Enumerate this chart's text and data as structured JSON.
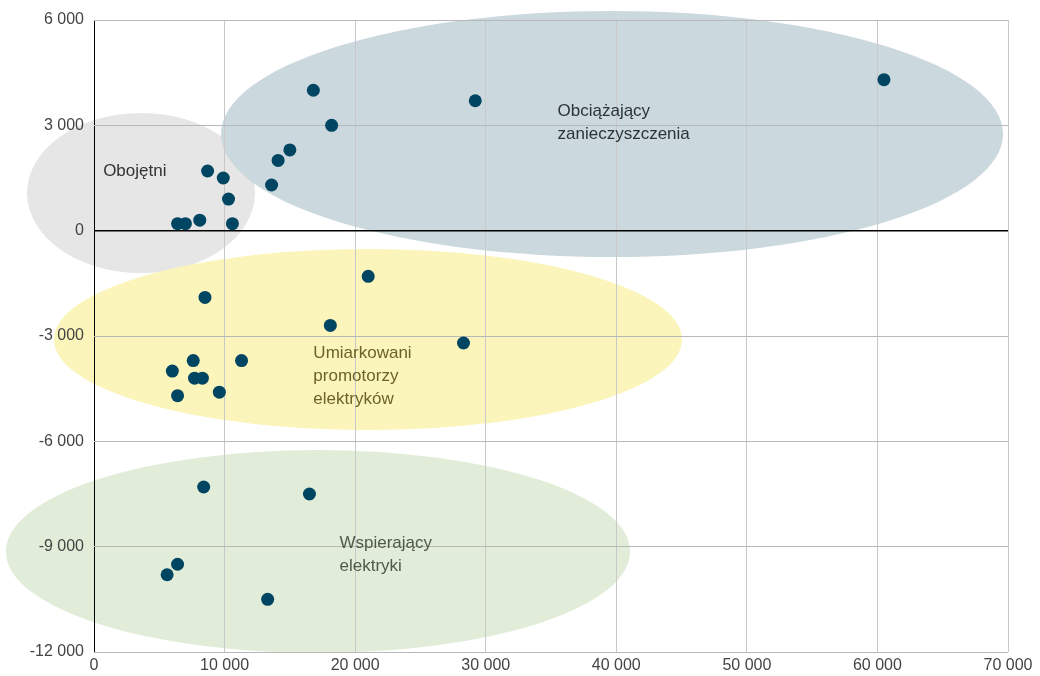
{
  "chart_data": {
    "type": "scatter",
    "xlim": [
      0,
      70000
    ],
    "xticks": [
      {
        "value": 0,
        "label": "0"
      },
      {
        "value": 10000,
        "label": "10 000"
      },
      {
        "value": 20000,
        "label": "20 000"
      },
      {
        "value": 30000,
        "label": "30 000"
      },
      {
        "value": 40000,
        "label": "40 000"
      },
      {
        "value": 50000,
        "label": "50 000"
      },
      {
        "value": 60000,
        "label": "60 000"
      },
      {
        "value": 70000,
        "label": "70 000"
      }
    ],
    "ylim": [
      -12000,
      6000
    ],
    "yticks": [
      {
        "value": -12000,
        "label": "-12 000"
      },
      {
        "value": -9000,
        "label": "-9 000"
      },
      {
        "value": -6000,
        "label": "-6 000"
      },
      {
        "value": -3000,
        "label": "-3 000"
      },
      {
        "value": 0,
        "label": "0"
      },
      {
        "value": 3000,
        "label": "3 000"
      },
      {
        "value": 6000,
        "label": "6 000"
      }
    ],
    "grid": true,
    "legend": false,
    "marker": "circle",
    "series": [
      {
        "color": "#004561",
        "x": [
          16800,
          18200,
          29200,
          60500,
          15000,
          14100,
          13600,
          8700,
          9900,
          10300,
          10600,
          8100,
          6400,
          7000,
          21000,
          8500,
          18100,
          28300,
          7600,
          11300,
          6000,
          7700,
          8300,
          6400,
          9600,
          8400,
          16500,
          6400,
          5600,
          13300
        ],
        "values": [
          4000,
          3000,
          3700,
          4300,
          2300,
          2000,
          1300,
          1700,
          1500,
          900,
          200,
          300,
          200,
          200,
          -1300,
          -1900,
          -2700,
          -3200,
          -3700,
          -3700,
          -4000,
          -4200,
          -4200,
          -4700,
          -4600,
          -7300,
          -7500,
          -9500,
          -9800,
          -10500
        ]
      }
    ],
    "ref_lines": [
      {
        "axis": "y",
        "value": 0,
        "color": "#000000"
      }
    ],
    "annotations": [
      "Obojętni",
      "Obciążający\nzanieczyszczenia",
      "Umiarkowani\npromotorzy\nelektryków",
      "Wspierający\nelektryki"
    ]
  }
}
